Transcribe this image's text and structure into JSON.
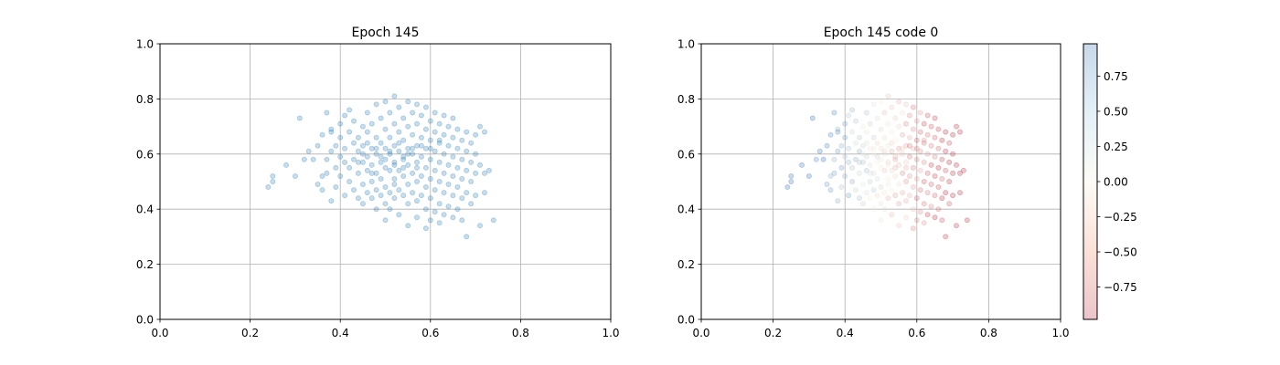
{
  "chart_data": [
    {
      "type": "scatter",
      "title": "Epoch 145",
      "xlim": [
        0,
        1
      ],
      "ylim": [
        0,
        1
      ],
      "x_ticks": [
        "0.0",
        "0.2",
        "0.4",
        "0.6",
        "0.8",
        "1.0"
      ],
      "y_ticks": [
        "0.0",
        "0.2",
        "0.4",
        "0.6",
        "0.8",
        "1.0"
      ],
      "grid": true,
      "point_color": "#1f77b4",
      "point_alpha": 0.25,
      "points": [
        [
          0.24,
          0.48
        ],
        [
          0.25,
          0.52
        ],
        [
          0.25,
          0.5
        ],
        [
          0.28,
          0.56
        ],
        [
          0.3,
          0.52
        ],
        [
          0.31,
          0.73
        ],
        [
          0.32,
          0.58
        ],
        [
          0.33,
          0.61
        ],
        [
          0.34,
          0.58
        ],
        [
          0.35,
          0.49
        ],
        [
          0.35,
          0.63
        ],
        [
          0.36,
          0.52
        ],
        [
          0.36,
          0.47
        ],
        [
          0.36,
          0.67
        ],
        [
          0.37,
          0.58
        ],
        [
          0.37,
          0.53
        ],
        [
          0.37,
          0.75
        ],
        [
          0.38,
          0.69
        ],
        [
          0.38,
          0.61
        ],
        [
          0.38,
          0.68
        ],
        [
          0.38,
          0.43
        ],
        [
          0.39,
          0.55
        ],
        [
          0.39,
          0.48
        ],
        [
          0.39,
          0.63
        ],
        [
          0.4,
          0.71
        ],
        [
          0.4,
          0.59
        ],
        [
          0.4,
          0.52
        ],
        [
          0.4,
          0.66
        ],
        [
          0.41,
          0.74
        ],
        [
          0.41,
          0.57
        ],
        [
          0.41,
          0.45
        ],
        [
          0.41,
          0.62
        ],
        [
          0.42,
          0.76
        ],
        [
          0.42,
          0.68
        ],
        [
          0.42,
          0.55
        ],
        [
          0.42,
          0.5
        ],
        [
          0.43,
          0.64
        ],
        [
          0.43,
          0.72
        ],
        [
          0.43,
          0.58
        ],
        [
          0.43,
          0.47
        ],
        [
          0.44,
          0.66
        ],
        [
          0.44,
          0.61
        ],
        [
          0.44,
          0.53
        ],
        [
          0.44,
          0.44
        ],
        [
          0.45,
          0.7
        ],
        [
          0.45,
          0.63
        ],
        [
          0.45,
          0.57
        ],
        [
          0.45,
          0.49
        ],
        [
          0.45,
          0.42
        ],
        [
          0.46,
          0.75
        ],
        [
          0.46,
          0.68
        ],
        [
          0.46,
          0.59
        ],
        [
          0.46,
          0.54
        ],
        [
          0.46,
          0.46
        ],
        [
          0.47,
          0.71
        ],
        [
          0.47,
          0.62
        ],
        [
          0.47,
          0.56
        ],
        [
          0.47,
          0.5
        ],
        [
          0.47,
          0.44
        ],
        [
          0.48,
          0.78
        ],
        [
          0.48,
          0.66
        ],
        [
          0.48,
          0.6
        ],
        [
          0.48,
          0.53
        ],
        [
          0.48,
          0.47
        ],
        [
          0.48,
          0.4
        ],
        [
          0.49,
          0.73
        ],
        [
          0.49,
          0.64
        ],
        [
          0.49,
          0.57
        ],
        [
          0.49,
          0.51
        ],
        [
          0.49,
          0.45
        ],
        [
          0.5,
          0.79
        ],
        [
          0.5,
          0.69
        ],
        [
          0.5,
          0.62
        ],
        [
          0.5,
          0.55
        ],
        [
          0.5,
          0.48
        ],
        [
          0.5,
          0.42
        ],
        [
          0.5,
          0.36
        ],
        [
          0.51,
          0.75
        ],
        [
          0.51,
          0.66
        ],
        [
          0.51,
          0.6
        ],
        [
          0.51,
          0.54
        ],
        [
          0.51,
          0.46
        ],
        [
          0.51,
          0.4
        ],
        [
          0.52,
          0.81
        ],
        [
          0.52,
          0.71
        ],
        [
          0.52,
          0.63
        ],
        [
          0.52,
          0.57
        ],
        [
          0.52,
          0.51
        ],
        [
          0.52,
          0.44
        ],
        [
          0.53,
          0.77
        ],
        [
          0.53,
          0.68
        ],
        [
          0.53,
          0.61
        ],
        [
          0.53,
          0.54
        ],
        [
          0.53,
          0.47
        ],
        [
          0.53,
          0.38
        ],
        [
          0.54,
          0.73
        ],
        [
          0.54,
          0.65
        ],
        [
          0.54,
          0.59
        ],
        [
          0.54,
          0.52
        ],
        [
          0.54,
          0.45
        ],
        [
          0.55,
          0.79
        ],
        [
          0.55,
          0.7
        ],
        [
          0.55,
          0.62
        ],
        [
          0.55,
          0.56
        ],
        [
          0.55,
          0.49
        ],
        [
          0.55,
          0.42
        ],
        [
          0.55,
          0.34
        ],
        [
          0.56,
          0.75
        ],
        [
          0.56,
          0.67
        ],
        [
          0.56,
          0.6
        ],
        [
          0.56,
          0.53
        ],
        [
          0.56,
          0.46
        ],
        [
          0.57,
          0.78
        ],
        [
          0.57,
          0.71
        ],
        [
          0.57,
          0.63
        ],
        [
          0.57,
          0.57
        ],
        [
          0.57,
          0.5
        ],
        [
          0.57,
          0.43
        ],
        [
          0.57,
          0.37
        ],
        [
          0.58,
          0.74
        ],
        [
          0.58,
          0.66
        ],
        [
          0.58,
          0.59
        ],
        [
          0.58,
          0.52
        ],
        [
          0.58,
          0.45
        ],
        [
          0.59,
          0.77
        ],
        [
          0.59,
          0.69
        ],
        [
          0.59,
          0.62
        ],
        [
          0.59,
          0.55
        ],
        [
          0.59,
          0.48
        ],
        [
          0.59,
          0.4
        ],
        [
          0.59,
          0.33
        ],
        [
          0.6,
          0.72
        ],
        [
          0.6,
          0.65
        ],
        [
          0.6,
          0.58
        ],
        [
          0.6,
          0.51
        ],
        [
          0.6,
          0.44
        ],
        [
          0.6,
          0.36
        ],
        [
          0.61,
          0.75
        ],
        [
          0.61,
          0.68
        ],
        [
          0.61,
          0.61
        ],
        [
          0.61,
          0.54
        ],
        [
          0.61,
          0.47
        ],
        [
          0.61,
          0.39
        ],
        [
          0.62,
          0.71
        ],
        [
          0.62,
          0.64
        ],
        [
          0.62,
          0.57
        ],
        [
          0.62,
          0.5
        ],
        [
          0.62,
          0.42
        ],
        [
          0.62,
          0.35
        ],
        [
          0.63,
          0.74
        ],
        [
          0.63,
          0.67
        ],
        [
          0.63,
          0.6
        ],
        [
          0.63,
          0.53
        ],
        [
          0.63,
          0.46
        ],
        [
          0.63,
          0.38
        ],
        [
          0.64,
          0.7
        ],
        [
          0.64,
          0.63
        ],
        [
          0.64,
          0.56
        ],
        [
          0.64,
          0.49
        ],
        [
          0.64,
          0.41
        ],
        [
          0.65,
          0.73
        ],
        [
          0.65,
          0.66
        ],
        [
          0.65,
          0.59
        ],
        [
          0.65,
          0.52
        ],
        [
          0.65,
          0.45
        ],
        [
          0.65,
          0.37
        ],
        [
          0.66,
          0.69
        ],
        [
          0.66,
          0.62
        ],
        [
          0.66,
          0.55
        ],
        [
          0.66,
          0.48
        ],
        [
          0.66,
          0.4
        ],
        [
          0.67,
          0.65
        ],
        [
          0.67,
          0.58
        ],
        [
          0.67,
          0.51
        ],
        [
          0.67,
          0.44
        ],
        [
          0.67,
          0.36
        ],
        [
          0.68,
          0.68
        ],
        [
          0.68,
          0.61
        ],
        [
          0.68,
          0.54
        ],
        [
          0.68,
          0.46
        ],
        [
          0.68,
          0.3
        ],
        [
          0.69,
          0.64
        ],
        [
          0.69,
          0.57
        ],
        [
          0.69,
          0.5
        ],
        [
          0.69,
          0.42
        ],
        [
          0.7,
          0.67
        ],
        [
          0.7,
          0.6
        ],
        [
          0.7,
          0.53
        ],
        [
          0.7,
          0.45
        ],
        [
          0.71,
          0.7
        ],
        [
          0.71,
          0.56
        ],
        [
          0.71,
          0.34
        ],
        [
          0.72,
          0.68
        ],
        [
          0.72,
          0.53
        ],
        [
          0.72,
          0.46
        ],
        [
          0.73,
          0.54
        ],
        [
          0.74,
          0.36
        ],
        [
          0.52,
          0.56
        ],
        [
          0.54,
          0.58
        ],
        [
          0.5,
          0.58
        ],
        [
          0.56,
          0.62
        ],
        [
          0.48,
          0.62
        ],
        [
          0.53,
          0.64
        ],
        [
          0.55,
          0.6
        ],
        [
          0.51,
          0.61
        ],
        [
          0.57,
          0.55
        ],
        [
          0.49,
          0.59
        ],
        [
          0.46,
          0.64
        ],
        [
          0.44,
          0.57
        ],
        [
          0.58,
          0.63
        ],
        [
          0.6,
          0.62
        ],
        [
          0.62,
          0.65
        ],
        [
          0.45,
          0.6
        ],
        [
          0.47,
          0.53
        ],
        [
          0.52,
          0.49
        ],
        [
          0.54,
          0.55
        ]
      ]
    },
    {
      "type": "scatter",
      "title": "Epoch 145 code 0",
      "xlim": [
        0,
        1
      ],
      "ylim": [
        0,
        1
      ],
      "x_ticks": [
        "0.0",
        "0.2",
        "0.4",
        "0.6",
        "0.8",
        "1.0"
      ],
      "y_ticks": [
        "0.0",
        "0.2",
        "0.4",
        "0.6",
        "0.8",
        "1.0"
      ],
      "grid": true,
      "point_alpha": 0.25,
      "colormap": "RdBu",
      "colorbar": {
        "range": [
          -0.98,
          0.98
        ],
        "ticks": [
          0.75,
          0.5,
          0.25,
          0.0,
          -0.25,
          -0.5,
          -0.75
        ],
        "tick_labels": [
          "0.75",
          "0.50",
          "0.25",
          "0.00",
          "−0.25",
          "−0.50",
          "−0.75"
        ],
        "color_low": "#b2182b",
        "color_mid": "#f7f0dc",
        "color_high": "#2166ac"
      }
    }
  ]
}
